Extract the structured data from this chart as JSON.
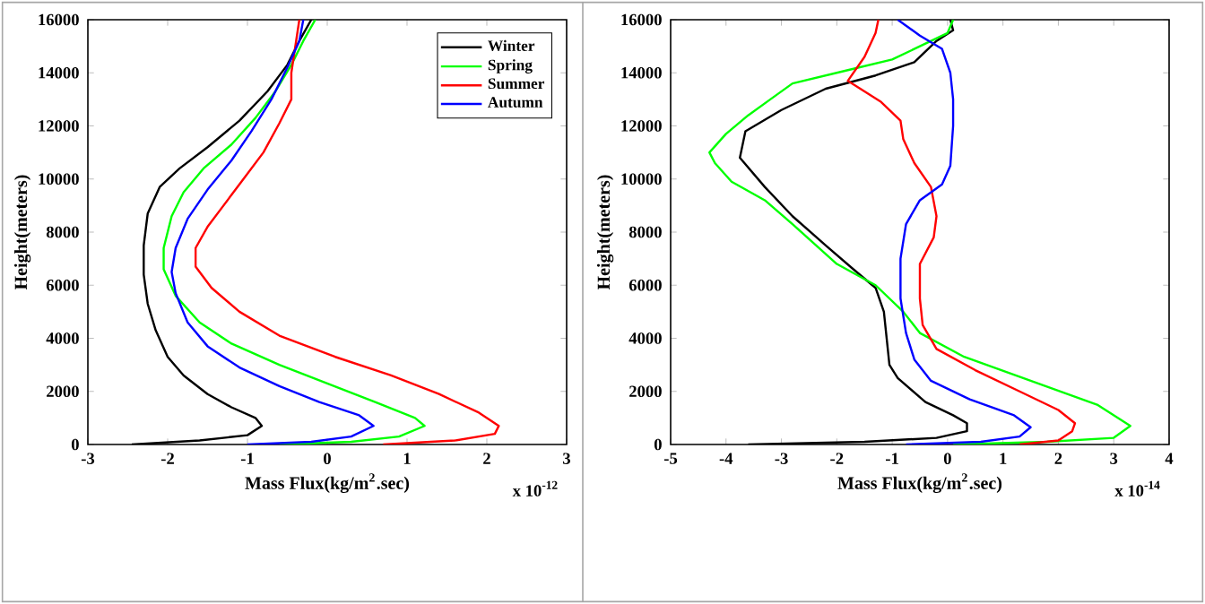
{
  "chart_data": [
    {
      "type": "line",
      "xlabel": "Mass Flux(kg/m$^{2}$.sec)",
      "ylabel": "Height(meters)",
      "annotations": [
        "x 10$^{-12}$"
      ],
      "xlim": [
        -3,
        3
      ],
      "xticks": [
        -3,
        -2,
        -1,
        0,
        1,
        2,
        3
      ],
      "ylim": [
        0,
        16000
      ],
      "yticks": [
        0,
        2000,
        4000,
        6000,
        8000,
        10000,
        12000,
        14000,
        16000
      ],
      "legend": "top right",
      "series": [
        {
          "name": "Winter",
          "color": "#000000",
          "x": [
            -2.45,
            -1.6,
            -1.0,
            -0.82,
            -0.9,
            -1.2,
            -1.5,
            -1.8,
            -2.0,
            -2.15,
            -2.25,
            -2.3,
            -2.3,
            -2.25,
            -2.1,
            -1.85,
            -1.5,
            -1.1,
            -0.75,
            -0.5,
            -0.35,
            -0.2
          ],
          "values": [
            0,
            150,
            350,
            700,
            1000,
            1400,
            1900,
            2600,
            3300,
            4300,
            5300,
            6400,
            7500,
            8700,
            9700,
            10400,
            11200,
            12200,
            13300,
            14300,
            15200,
            16000
          ]
        },
        {
          "name": "Spring",
          "color": "#00ff00",
          "x": [
            -0.6,
            0.3,
            0.9,
            1.22,
            1.1,
            0.6,
            0,
            -0.6,
            -1.2,
            -1.6,
            -1.9,
            -2.05,
            -2.05,
            -1.95,
            -1.8,
            -1.55,
            -1.2,
            -0.9,
            -0.65,
            -0.45,
            -0.3,
            -0.15
          ],
          "values": [
            0,
            100,
            300,
            700,
            1000,
            1600,
            2300,
            3000,
            3800,
            4600,
            5600,
            6600,
            7400,
            8600,
            9500,
            10400,
            11300,
            12300,
            13300,
            14300,
            15200,
            16000
          ]
        },
        {
          "name": "Summer",
          "color": "#ff0000",
          "x": [
            0.7,
            1.6,
            2.1,
            2.15,
            1.9,
            1.4,
            0.8,
            0.1,
            -0.6,
            -1.1,
            -1.45,
            -1.65,
            -1.65,
            -1.5,
            -1.3,
            -1.05,
            -0.8,
            -0.6,
            -0.45,
            -0.45,
            -0.4,
            -0.35
          ],
          "values": [
            0,
            150,
            400,
            700,
            1200,
            1900,
            2600,
            3300,
            4100,
            5000,
            5900,
            6700,
            7400,
            8200,
            9000,
            10000,
            11000,
            12100,
            13000,
            14000,
            15000,
            16000
          ]
        },
        {
          "name": "Autumn",
          "color": "#0000ff",
          "x": [
            -1.0,
            -0.2,
            0.3,
            0.58,
            0.4,
            -0.1,
            -0.6,
            -1.1,
            -1.5,
            -1.75,
            -1.9,
            -1.95,
            -1.9,
            -1.75,
            -1.5,
            -1.2,
            -0.95,
            -0.7,
            -0.5,
            -0.35,
            -0.3
          ],
          "values": [
            0,
            100,
            300,
            700,
            1100,
            1600,
            2200,
            2900,
            3700,
            4600,
            5700,
            6500,
            7400,
            8500,
            9600,
            10700,
            11800,
            13000,
            14200,
            15200,
            16000
          ]
        }
      ]
    },
    {
      "type": "line",
      "xlabel": "Mass Flux(kg/m$^{2}$.sec)",
      "ylabel": "Height(meters)",
      "annotations": [
        "x 10$^{-14}$"
      ],
      "xlim": [
        -5,
        4
      ],
      "xticks": [
        -5,
        -4,
        -3,
        -2,
        -1,
        0,
        1,
        2,
        3,
        4
      ],
      "ylim": [
        0,
        16000
      ],
      "yticks": [
        0,
        2000,
        4000,
        6000,
        8000,
        10000,
        12000,
        14000,
        16000
      ],
      "series": [
        {
          "color": "#000000",
          "x": [
            -3.6,
            -1.5,
            -0.2,
            0.35,
            0.35,
            0.1,
            -0.4,
            -0.9,
            -1.05,
            -1.1,
            -1.15,
            -1.3,
            -1.7,
            -2.2,
            -2.8,
            -3.3,
            -3.75,
            -3.65,
            -3.0,
            -2.2,
            -1.3,
            -0.6,
            -0.2,
            0.1,
            0.05
          ],
          "values": [
            0,
            100,
            250,
            500,
            800,
            1100,
            1600,
            2500,
            3000,
            4000,
            5000,
            5900,
            6600,
            7500,
            8600,
            9700,
            10800,
            11800,
            12600,
            13400,
            13900,
            14400,
            15200,
            15600,
            16000
          ]
        },
        {
          "color": "#00ff00",
          "x": [
            0.1,
            1.8,
            3.0,
            3.3,
            2.7,
            1.5,
            0.3,
            -0.5,
            -0.8,
            -1.3,
            -2.0,
            -2.8,
            -3.3,
            -3.9,
            -4.2,
            -4.3,
            -4.0,
            -3.6,
            -3.2,
            -2.8,
            -1.8,
            -1.0,
            0.0,
            0.1
          ],
          "values": [
            0,
            100,
            250,
            700,
            1500,
            2400,
            3300,
            4200,
            5000,
            6000,
            6800,
            8300,
            9200,
            9900,
            10600,
            11000,
            11700,
            12400,
            13000,
            13600,
            14100,
            14500,
            15500,
            16000
          ]
        },
        {
          "color": "#ff0000",
          "x": [
            1.3,
            2.0,
            2.25,
            2.3,
            2.0,
            1.3,
            0.5,
            -0.2,
            -0.45,
            -0.5,
            -0.5,
            -0.25,
            -0.2,
            -0.3,
            -0.6,
            -0.8,
            -0.85,
            -1.2,
            -1.8,
            -1.5,
            -1.3,
            -1.25
          ],
          "values": [
            0,
            150,
            500,
            800,
            1300,
            2000,
            2800,
            3600,
            4500,
            5500,
            6800,
            7800,
            8600,
            9700,
            10600,
            11500,
            12200,
            12900,
            13700,
            14600,
            15500,
            16000
          ]
        },
        {
          "color": "#0000ff",
          "x": [
            -0.75,
            0.6,
            1.3,
            1.5,
            1.2,
            0.4,
            -0.3,
            -0.6,
            -0.75,
            -0.85,
            -0.85,
            -0.75,
            -0.5,
            -0.1,
            0.05,
            0.1,
            0.1,
            0.05,
            -0.1,
            -0.5,
            -0.9
          ],
          "values": [
            0,
            100,
            300,
            650,
            1100,
            1700,
            2400,
            3200,
            4200,
            5500,
            7000,
            8300,
            9200,
            9800,
            10500,
            12000,
            13000,
            14000,
            14900,
            15400,
            16000
          ]
        }
      ]
    }
  ]
}
